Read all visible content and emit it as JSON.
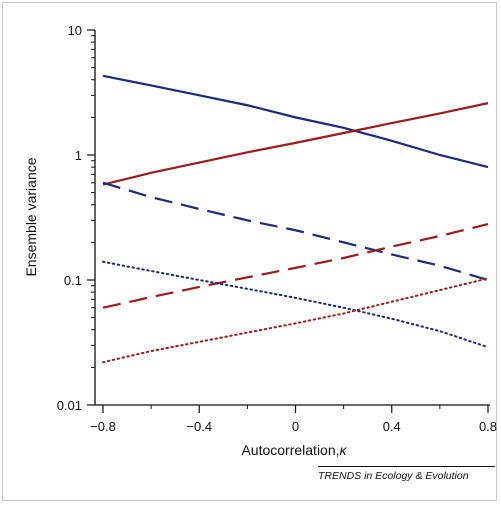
{
  "figure": {
    "credit": "TRENDS in Ecology & Evolution"
  },
  "chart_data": {
    "type": "line",
    "xlabel": "Autocorrelation,",
    "xlabel_symbol": "κ",
    "ylabel": "Ensemble variance",
    "xlim": [
      -0.8,
      0.8
    ],
    "ylim": [
      0.01,
      10
    ],
    "yscale": "log",
    "grid": false,
    "legend": "none",
    "xticks": [
      -0.8,
      -0.4,
      0,
      0.4,
      0.8
    ],
    "xtick_labels": [
      "−0.8",
      "−0.4",
      "0",
      "0.4",
      "0.8"
    ],
    "yticks": [
      0.01,
      0.1,
      1,
      10
    ],
    "ytick_labels": [
      "0.01",
      "0.1",
      "1",
      "10"
    ],
    "x": [
      -0.8,
      -0.6,
      -0.4,
      -0.2,
      0,
      0.2,
      0.4,
      0.6,
      0.8
    ],
    "series": [
      {
        "color": "#1c2a80",
        "style": "solid",
        "values": [
          4.3,
          3.6,
          3.0,
          2.5,
          2.0,
          1.65,
          1.3,
          1.0,
          0.8
        ]
      },
      {
        "color": "#9e1b1b",
        "style": "solid",
        "values": [
          0.58,
          0.72,
          0.87,
          1.05,
          1.25,
          1.5,
          1.8,
          2.15,
          2.6
        ]
      },
      {
        "color": "#1c2a80",
        "style": "dashed",
        "values": [
          0.6,
          0.46,
          0.37,
          0.3,
          0.25,
          0.2,
          0.16,
          0.13,
          0.1
        ]
      },
      {
        "color": "#9e1b1b",
        "style": "dashed",
        "values": [
          0.06,
          0.073,
          0.088,
          0.105,
          0.125,
          0.15,
          0.185,
          0.225,
          0.28
        ]
      },
      {
        "color": "#1c2a80",
        "style": "dotted",
        "values": [
          0.14,
          0.118,
          0.1,
          0.085,
          0.072,
          0.06,
          0.049,
          0.039,
          0.029
        ]
      },
      {
        "color": "#9e1b1b",
        "style": "dotted",
        "values": [
          0.022,
          0.027,
          0.032,
          0.038,
          0.045,
          0.054,
          0.067,
          0.083,
          0.103
        ]
      }
    ]
  }
}
